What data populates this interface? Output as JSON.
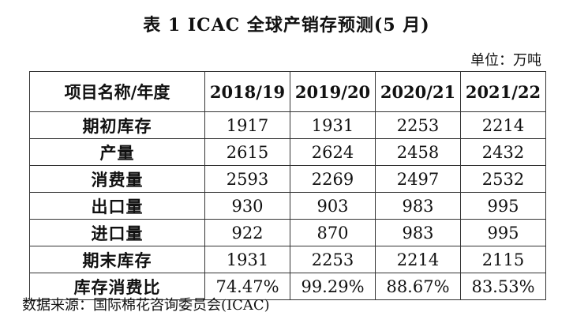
{
  "title": "表 1  ICAC 全球产销存预测(5 月)",
  "unit": "单位：万吨",
  "table": {
    "header": [
      "项目名称/年度",
      "2018/19",
      "2019/20",
      "2020/21",
      "2021/22"
    ],
    "rows": [
      {
        "label": "期初库存",
        "values": [
          "1917",
          "1931",
          "2253",
          "2214"
        ]
      },
      {
        "label": "产量",
        "values": [
          "2615",
          "2624",
          "2458",
          "2432"
        ]
      },
      {
        "label": "消费量",
        "values": [
          "2593",
          "2269",
          "2497",
          "2532"
        ]
      },
      {
        "label": "出口量",
        "values": [
          "930",
          "903",
          "983",
          "995"
        ]
      },
      {
        "label": "进口量",
        "values": [
          "922",
          "870",
          "983",
          "995"
        ]
      },
      {
        "label": "期末库存",
        "values": [
          "1931",
          "2253",
          "2214",
          "2115"
        ]
      },
      {
        "label": "库存消费比",
        "values": [
          "74.47%",
          "99.29%",
          "88.67%",
          "83.53%"
        ]
      }
    ]
  },
  "source": "数据来源：国际棉花咨询委员会(ICAC)"
}
